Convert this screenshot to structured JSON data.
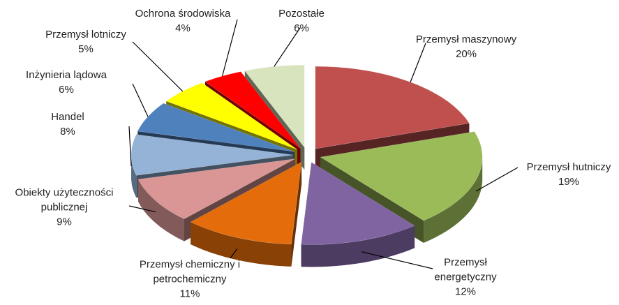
{
  "chart_data": {
    "type": "pie3d",
    "categories": [
      "Przemysł maszynowy",
      "Przemysł hutniczy",
      "Przemysł energetyczny",
      "Przemysł chemiczny i petrochemiczny",
      "Obiekty użyteczności publicznej",
      "Handel",
      "Inżynieria lądowa",
      "Przemysł lotniczy",
      "Ochrona środowiska",
      "Pozostałe"
    ],
    "values": [
      20,
      19,
      12,
      11,
      9,
      8,
      6,
      5,
      4,
      6
    ],
    "value_labels": [
      "20%",
      "19%",
      "12%",
      "11%",
      "9%",
      "8%",
      "6%",
      "5%",
      "4%",
      "6%"
    ],
    "colors": [
      "#c0504d",
      "#9bbb59",
      "#8064a2",
      "#e46c0a",
      "#d99694",
      "#95b3d7",
      "#4f81bd",
      "#ffff00",
      "#ff0000",
      "#d7e4bd"
    ]
  }
}
